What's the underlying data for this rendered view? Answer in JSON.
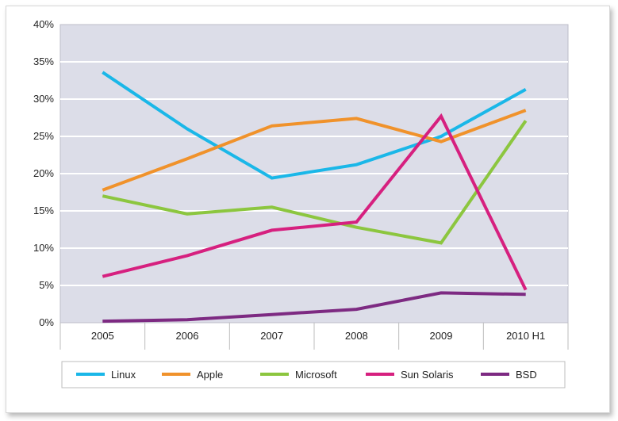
{
  "chart_data": {
    "type": "line",
    "categories": [
      "2005",
      "2006",
      "2007",
      "2008",
      "2009",
      "2010 H1"
    ],
    "ylim": [
      0,
      40
    ],
    "yticks": [
      "0%",
      "5%",
      "10%",
      "15%",
      "20%",
      "25%",
      "30%",
      "35%",
      "40%"
    ],
    "grid": true,
    "legend_position": "bottom",
    "series": [
      {
        "name": "Linux",
        "color": "#1ab7e8",
        "values": [
          33.6,
          26.0,
          19.4,
          21.2,
          25.0,
          31.3
        ]
      },
      {
        "name": "Apple",
        "color": "#f0922b",
        "values": [
          17.8,
          22.0,
          26.4,
          27.4,
          24.3,
          28.5
        ]
      },
      {
        "name": "Microsoft",
        "color": "#8cc63f",
        "values": [
          17.0,
          14.6,
          15.5,
          12.8,
          10.7,
          27.1
        ]
      },
      {
        "name": "Sun Solaris",
        "color": "#d6207f",
        "values": [
          6.2,
          9.0,
          12.4,
          13.5,
          27.7,
          4.4
        ]
      },
      {
        "name": "BSD",
        "color": "#7d2a82",
        "values": [
          0.2,
          0.4,
          1.1,
          1.8,
          4.0,
          3.8
        ]
      }
    ]
  }
}
